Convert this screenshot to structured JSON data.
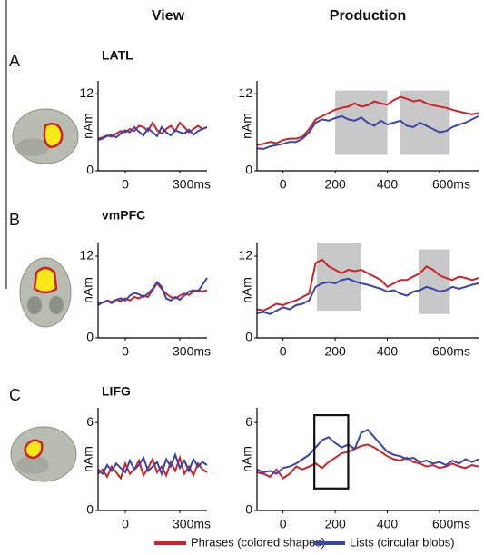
{
  "headers": {
    "view": "View",
    "production": "Production"
  },
  "panels": [
    {
      "letter": "A",
      "region": "LATL"
    },
    {
      "letter": "B",
      "region": "vmPFC"
    },
    {
      "letter": "C",
      "region": "LIFG"
    }
  ],
  "legend": [
    {
      "name": "Phrases (colored shapes)",
      "color": "#cc2229"
    },
    {
      "name": "Lists (circular blobs)",
      "color": "#3a45a8"
    }
  ],
  "chart_data": [
    {
      "type": "line",
      "ylabel": "nAm",
      "x": [
        -150,
        -125,
        -100,
        -75,
        -50,
        -25,
        0,
        25,
        50,
        75,
        100,
        125,
        150,
        175,
        200,
        225,
        250,
        275,
        300,
        325,
        350,
        375,
        400,
        425,
        450
      ],
      "xlim": [
        -150,
        450
      ],
      "xticks": [
        0,
        {
          "value": 300,
          "label": "300ms"
        }
      ],
      "ylim": [
        0,
        14
      ],
      "yticks": [
        0,
        12
      ],
      "series": [
        {
          "color": "#cc2229",
          "values": [
            5,
            5.2,
            5.5,
            5.3,
            5.8,
            6.2,
            6,
            6.5,
            6.2,
            7,
            6.8,
            6.2,
            7.5,
            6.3,
            5.8,
            6.5,
            7,
            6.2,
            7.5,
            6.8,
            6,
            6.5,
            7,
            6.5,
            6.8
          ]
        },
        {
          "color": "#3a45a8",
          "values": [
            4.8,
            5,
            5.4,
            5.6,
            5.2,
            5.8,
            6.3,
            6,
            6.8,
            6.1,
            5.5,
            6.6,
            6,
            5.4,
            6.8,
            6,
            5.5,
            6.3,
            6,
            5.8,
            6.4,
            5.6,
            6.2,
            6.5,
            6.8
          ]
        }
      ]
    },
    {
      "type": "line",
      "ylabel": "nAm",
      "x": [
        -100,
        -75,
        -50,
        -25,
        0,
        25,
        50,
        75,
        100,
        125,
        150,
        175,
        200,
        225,
        250,
        275,
        300,
        325,
        350,
        375,
        400,
        425,
        450,
        475,
        500,
        525,
        550,
        575,
        600,
        625,
        650,
        675,
        700,
        725,
        750
      ],
      "xlim": [
        -100,
        750
      ],
      "xticks": [
        0,
        200,
        400,
        {
          "value": 600,
          "label": "600ms"
        }
      ],
      "ylim": [
        0,
        14
      ],
      "yticks": [
        0,
        12
      ],
      "shaded_regions": [
        {
          "x": [
            200,
            400
          ],
          "y": [
            2.5,
            12.5
          ]
        },
        {
          "x": [
            450,
            640
          ],
          "y": [
            2.5,
            12.5
          ]
        }
      ],
      "series": [
        {
          "color": "#cc2229",
          "values": [
            4,
            4.2,
            4.5,
            4.3,
            4.8,
            5,
            5,
            5.3,
            6.5,
            8,
            8.5,
            9,
            9.5,
            9.8,
            10,
            10.5,
            10,
            10.2,
            10.8,
            10.5,
            10.3,
            11,
            11.5,
            11.2,
            10.8,
            11,
            10.5,
            10.2,
            10,
            9.8,
            9.5,
            9.2,
            9,
            8.8,
            9
          ]
        },
        {
          "color": "#3a45a8",
          "values": [
            3.5,
            3.4,
            3.8,
            4,
            4.2,
            4.5,
            4.5,
            5,
            6,
            7.5,
            8,
            7.8,
            8.2,
            8.5,
            8,
            7.8,
            8.3,
            7.5,
            7,
            7.8,
            7.2,
            7.5,
            7.8,
            7,
            6.8,
            7.5,
            7,
            6.5,
            6,
            6.2,
            6.8,
            7.2,
            7.5,
            8,
            8.5
          ]
        }
      ]
    },
    {
      "type": "line",
      "ylabel": "nAm",
      "x": [
        -150,
        -125,
        -100,
        -75,
        -50,
        -25,
        0,
        25,
        50,
        75,
        100,
        125,
        150,
        175,
        200,
        225,
        250,
        275,
        300,
        325,
        350,
        375,
        400,
        425,
        450
      ],
      "xlim": [
        -150,
        450
      ],
      "xticks": [
        0,
        {
          "value": 300,
          "label": "300ms"
        }
      ],
      "ylim": [
        0,
        14
      ],
      "yticks": [
        0,
        12
      ],
      "series": [
        {
          "color": "#cc2229",
          "values": [
            5,
            5.2,
            5.5,
            5.3,
            5.6,
            5.4,
            5.8,
            5.5,
            6,
            5.8,
            6.2,
            6,
            7,
            8,
            7.2,
            6.5,
            6,
            5.8,
            6.2,
            6.5,
            6.3,
            6.8,
            7,
            6.8,
            7
          ]
        },
        {
          "color": "#3a45a8",
          "values": [
            4.8,
            5.2,
            5.4,
            5.1,
            5.6,
            5.8,
            5.5,
            6.2,
            6.6,
            6.4,
            6,
            6.5,
            7.2,
            8.2,
            7.5,
            5.8,
            5.5,
            6,
            5.6,
            6.2,
            6.8,
            7,
            6.8,
            7.8,
            8.8
          ]
        }
      ]
    },
    {
      "type": "line",
      "ylabel": "nAm",
      "x": [
        -100,
        -75,
        -50,
        -25,
        0,
        25,
        50,
        75,
        100,
        125,
        150,
        175,
        200,
        225,
        250,
        275,
        300,
        325,
        350,
        375,
        400,
        425,
        450,
        475,
        500,
        525,
        550,
        575,
        600,
        625,
        650,
        675,
        700,
        725,
        750
      ],
      "xlim": [
        -100,
        750
      ],
      "xticks": [
        0,
        200,
        400,
        {
          "value": 600,
          "label": "600ms"
        }
      ],
      "ylim": [
        0,
        14
      ],
      "yticks": [
        0,
        12
      ],
      "shaded_regions": [
        {
          "x": [
            130,
            300
          ],
          "y": [
            4,
            14
          ]
        },
        {
          "x": [
            520,
            640
          ],
          "y": [
            3.5,
            13
          ]
        }
      ],
      "series": [
        {
          "color": "#cc2229",
          "values": [
            4.2,
            4,
            4.5,
            5,
            4.8,
            5.2,
            5.5,
            6,
            6.5,
            11,
            11.5,
            10.5,
            10,
            9.5,
            10,
            9.8,
            10,
            9.5,
            9,
            8.5,
            7.5,
            8,
            8.5,
            8.5,
            9,
            9.5,
            10.5,
            10,
            9.2,
            8.8,
            8.5,
            9,
            8.8,
            8.5,
            8.8
          ]
        },
        {
          "color": "#3a45a8",
          "values": [
            3.6,
            3.8,
            3.5,
            4,
            4.5,
            4.2,
            4.8,
            5,
            5.5,
            7.5,
            8,
            8.2,
            8,
            8.5,
            8.7,
            8.3,
            8,
            7.8,
            7.5,
            7.2,
            6.8,
            7,
            6.5,
            6.2,
            6.8,
            7,
            7.5,
            7.2,
            6.8,
            7,
            7.5,
            7.2,
            7.5,
            7.8,
            8
          ]
        }
      ]
    },
    {
      "type": "line",
      "ylabel": "nAm",
      "x": [
        -150,
        -125,
        -100,
        -75,
        -50,
        -25,
        0,
        25,
        50,
        75,
        100,
        125,
        150,
        175,
        200,
        225,
        250,
        275,
        300,
        325,
        350,
        375,
        400,
        425,
        450
      ],
      "xlim": [
        -150,
        450
      ],
      "xticks": [
        0,
        {
          "value": 300,
          "label": "300ms"
        }
      ],
      "ylim": [
        0,
        7
      ],
      "yticks": [
        0,
        6
      ],
      "series": [
        {
          "color": "#cc2229",
          "values": [
            2.5,
            2.8,
            2.3,
            3,
            2.6,
            2.2,
            3.2,
            2.5,
            2.8,
            3.4,
            2.4,
            2.9,
            3.5,
            2.6,
            3,
            2.4,
            3.3,
            2.7,
            3.6,
            2.5,
            3,
            2.4,
            3.2,
            2.8,
            2.6
          ]
        },
        {
          "color": "#3a45a8",
          "values": [
            2.8,
            2.5,
            3.1,
            2.7,
            3.2,
            2.9,
            2.6,
            3.4,
            2.8,
            3.1,
            3.6,
            2.7,
            3,
            3.3,
            2.5,
            3.5,
            3,
            3.8,
            2.9,
            3.4,
            2.7,
            3.5,
            3,
            3.3,
            3.1
          ]
        }
      ]
    },
    {
      "type": "line",
      "ylabel": "nAm",
      "x": [
        -100,
        -75,
        -50,
        -25,
        0,
        25,
        50,
        75,
        100,
        125,
        150,
        175,
        200,
        225,
        250,
        275,
        300,
        325,
        350,
        375,
        400,
        425,
        450,
        475,
        500,
        525,
        550,
        575,
        600,
        625,
        650,
        675,
        700,
        725,
        750
      ],
      "xlim": [
        -100,
        750
      ],
      "xticks": [
        0,
        200,
        400,
        {
          "value": 600,
          "label": "600ms"
        }
      ],
      "ylim": [
        0,
        7
      ],
      "yticks": [
        0,
        6
      ],
      "outlined_regions": [
        {
          "x": [
            120,
            250
          ],
          "y": [
            1.5,
            6.5
          ]
        }
      ],
      "series": [
        {
          "color": "#cc2229",
          "values": [
            2.6,
            2.5,
            2.3,
            2.8,
            2.2,
            2.5,
            3,
            2.8,
            3,
            3.2,
            2.9,
            3.3,
            3.6,
            3.9,
            4,
            4.2,
            4.4,
            4.5,
            4.3,
            4,
            3.7,
            3.5,
            3.4,
            3.6,
            3.3,
            3.2,
            3,
            3.1,
            2.9,
            3,
            3.2,
            3,
            2.9,
            3.1,
            3
          ]
        },
        {
          "color": "#3a45a8",
          "values": [
            2.8,
            2.6,
            2.7,
            2.5,
            2.9,
            3,
            3.2,
            3.5,
            3.8,
            4.3,
            4.8,
            5,
            4.6,
            4.3,
            4.5,
            4.2,
            5.3,
            5.5,
            5,
            4.5,
            4,
            3.8,
            3.7,
            3.5,
            3.6,
            3.3,
            3.4,
            3.2,
            3.3,
            3.1,
            3.4,
            3.2,
            3.5,
            3.3,
            3.5
          ]
        }
      ]
    }
  ]
}
